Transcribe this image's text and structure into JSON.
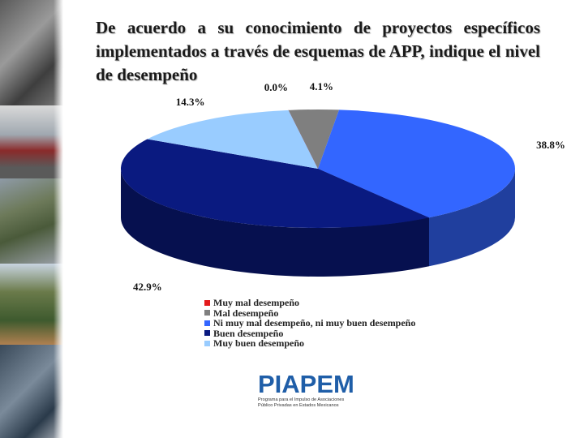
{
  "slide": {
    "title": "De acuerdo a su conocimiento de proyectos específicos implementados a través de esquemas de APP, indique el nivel de desempeño"
  },
  "chart_data": {
    "type": "pie",
    "style": "3d",
    "categories": [
      "Muy mal desempeño",
      "Mal desempeño",
      "Ni muy mal desempeño, ni muy buen desempeño",
      "Buen desempeño",
      "Muy buen desempeño"
    ],
    "values": [
      0.0,
      4.1,
      38.8,
      42.9,
      14.3
    ],
    "value_labels": [
      "0.0%",
      "4.1%",
      "38.8%",
      "42.9%",
      "14.3%"
    ],
    "colors": [
      "#e31a1c",
      "#7f7f7f",
      "#3366ff",
      "#0a1a80",
      "#99ccff"
    ],
    "legend_position": "bottom"
  },
  "logo": {
    "name": "PIAPEM",
    "subtitle_line1": "Programa para el Impulso de Asociaciones",
    "subtitle_line2": "Público Privadas en Estados Mexicanos"
  }
}
